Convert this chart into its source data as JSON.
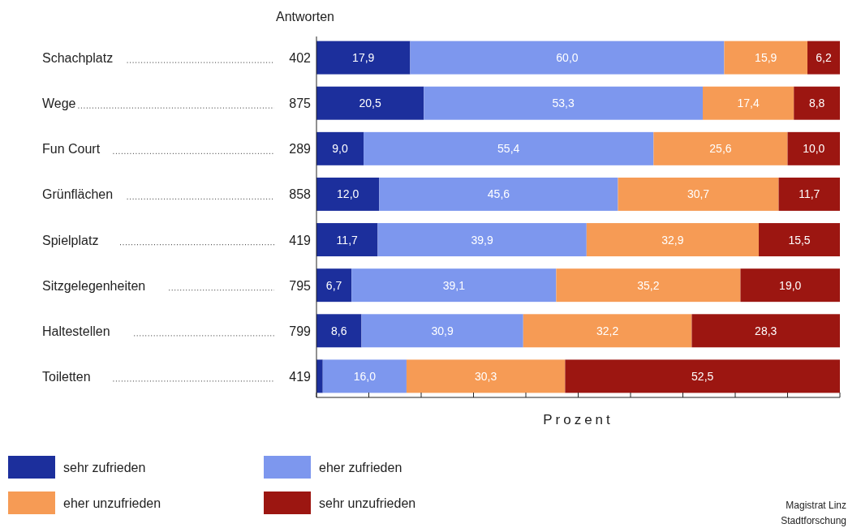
{
  "chart_data": {
    "type": "bar",
    "orientation": "horizontal",
    "stacked": true,
    "categories": [
      "Schachplatz",
      "Wege",
      "Fun Court",
      "Grünflächen",
      "Spielplatz",
      "Sitzgelegenheiten",
      "Haltestellen",
      "Toiletten"
    ],
    "series": [
      {
        "name": "sehr zufrieden",
        "color": "#1c2f9c",
        "values": [
          17.9,
          20.5,
          9.0,
          12.0,
          11.7,
          6.7,
          8.6,
          1.2
        ],
        "value_labels": [
          "17,9",
          "20,5",
          "9,0",
          "12,0",
          "11,7",
          "6,7",
          "8,6",
          null
        ]
      },
      {
        "name": "eher zufrieden",
        "color": "#7d97ee",
        "values": [
          60.0,
          53.3,
          55.4,
          45.6,
          39.9,
          39.1,
          30.9,
          16.0
        ],
        "value_labels": [
          "60,0",
          "53,3",
          "55,4",
          "45,6",
          "39,9",
          "39,1",
          "30,9",
          "16,0"
        ]
      },
      {
        "name": "eher unzufrieden",
        "color": "#f69b55",
        "values": [
          15.9,
          17.4,
          25.6,
          30.7,
          32.9,
          35.2,
          32.2,
          30.3
        ],
        "value_labels": [
          "15,9",
          "17,4",
          "25,6",
          "30,7",
          "32,9",
          "35,2",
          "32,2",
          "30,3"
        ]
      },
      {
        "name": "sehr unzufrieden",
        "color": "#9c1611",
        "values": [
          6.2,
          8.8,
          10.0,
          11.7,
          15.5,
          19.0,
          28.3,
          52.5
        ],
        "value_labels": [
          "6,2",
          "8,8",
          "10,0",
          "11,7",
          "15,5",
          "19,0",
          "28,3",
          "52,5"
        ]
      }
    ],
    "xlabel": "Prozent",
    "xlim": [
      0,
      100
    ],
    "xticks": [
      {
        "value": 0,
        "label": null
      },
      {
        "value": 10,
        "label": null
      },
      {
        "value": 20,
        "label": null
      },
      {
        "value": 30,
        "label": null
      },
      {
        "value": 40,
        "label": null
      },
      {
        "value": 50,
        "label": null
      },
      {
        "value": 60,
        "label": null
      },
      {
        "value": 70,
        "label": null
      },
      {
        "value": 80,
        "label": null
      },
      {
        "value": 90,
        "label": null
      },
      {
        "value": 100,
        "label": null
      }
    ],
    "tick_labels": "y",
    "legend": "bottom",
    "annotations": [
      "Antworten",
      "402",
      "875",
      "289",
      "858",
      "419",
      "795",
      "799",
      "419",
      "Magistrat Linz",
      "Stadtforschung"
    ]
  }
}
